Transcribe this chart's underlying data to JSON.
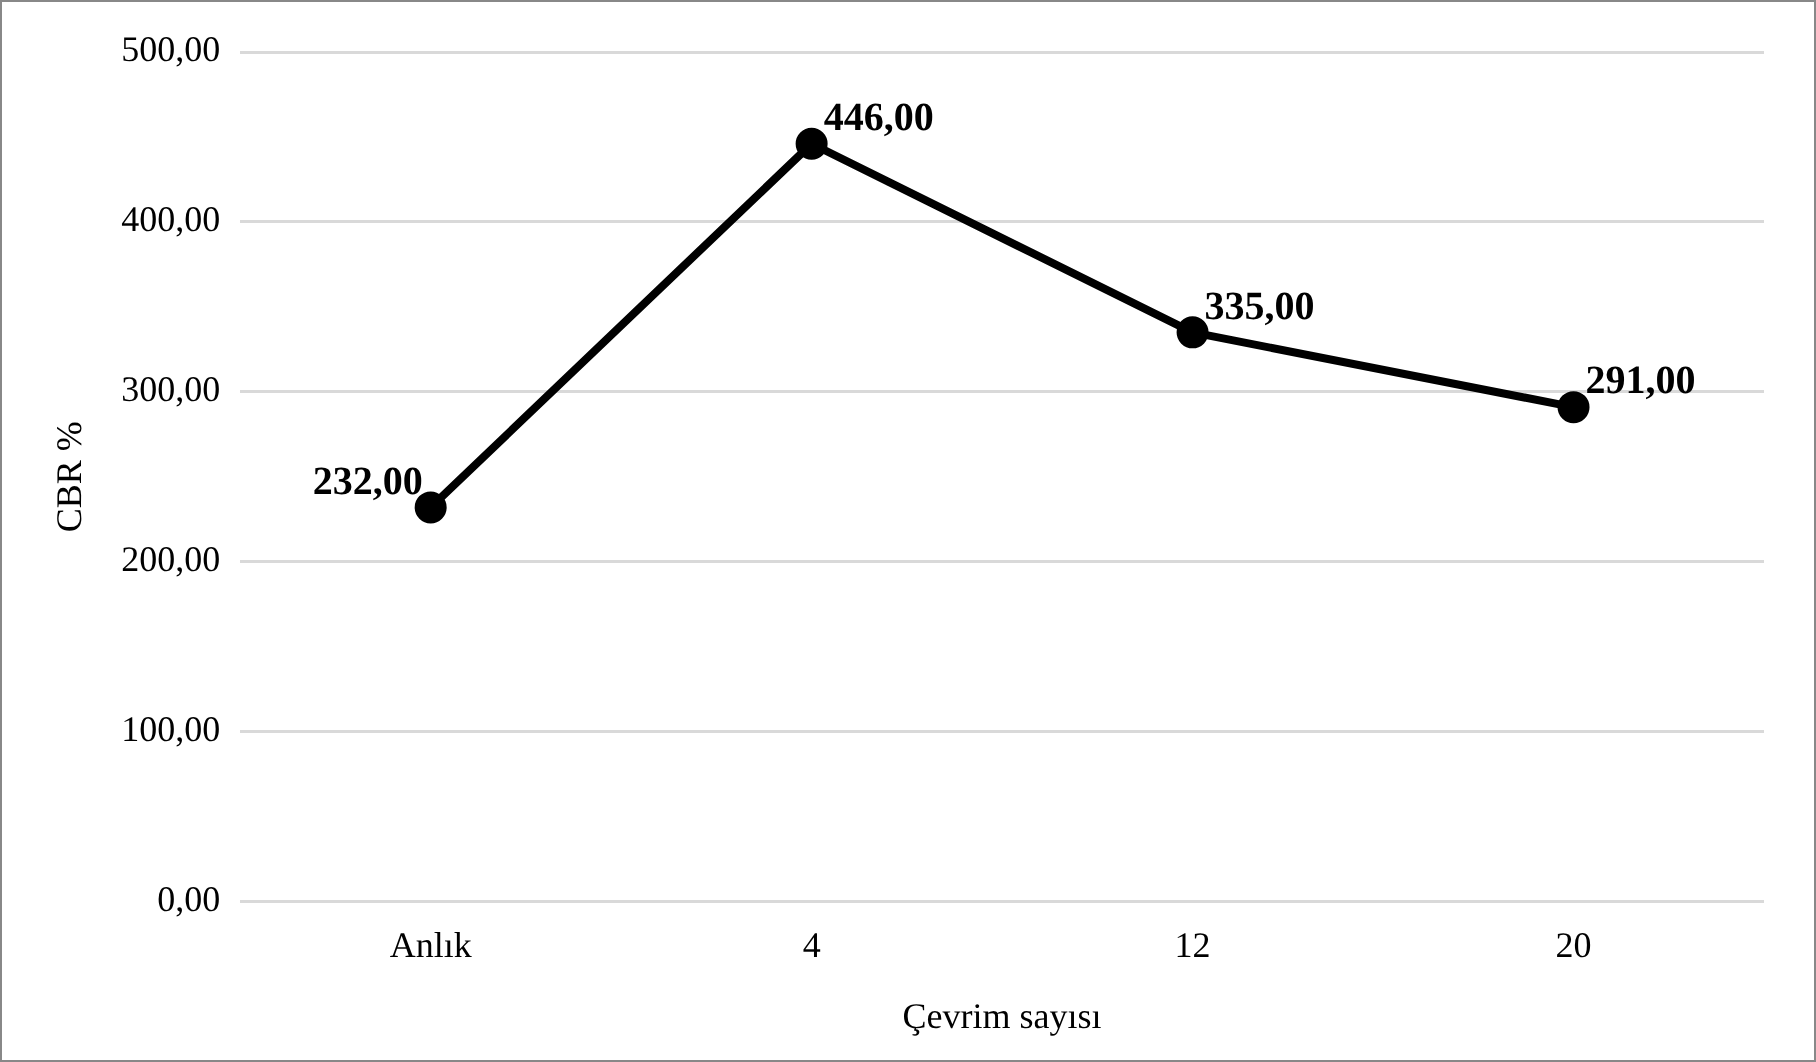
{
  "chart_data": {
    "type": "line",
    "xlabel": "Çevrim sayısı",
    "ylabel": "CBR %",
    "categories": [
      "Anlık",
      "4",
      "12",
      "20"
    ],
    "series": [
      {
        "color": "#000000",
        "values": [
          232,
          446,
          335,
          291
        ],
        "value_labels": [
          "232,00",
          "446,00",
          "335,00",
          "291,00"
        ]
      }
    ],
    "ylim": [
      0,
      500
    ],
    "yticks": [
      {
        "value": 0,
        "label": "0,00"
      },
      {
        "value": 100,
        "label": "100,00"
      },
      {
        "value": 200,
        "label": "200,00"
      },
      {
        "value": 300,
        "label": "300,00"
      },
      {
        "value": 400,
        "label": "400,00"
      },
      {
        "value": 500,
        "label": "500,00"
      }
    ],
    "grid": "y",
    "legend": false,
    "marker": "circle",
    "line_style": "solid"
  }
}
